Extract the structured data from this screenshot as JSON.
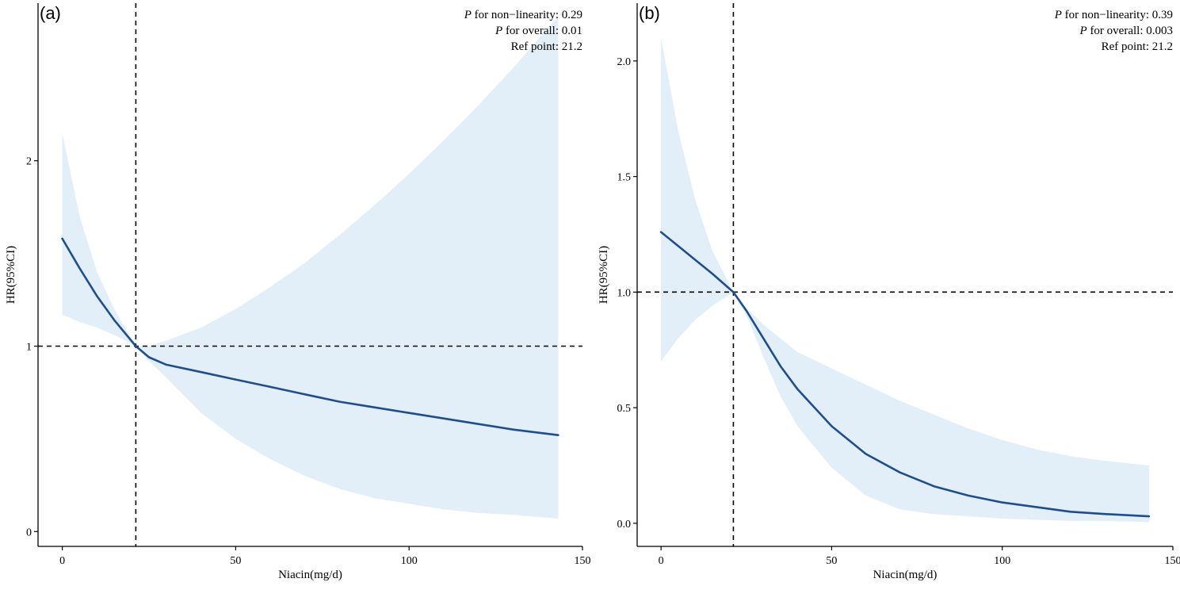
{
  "chart_data": [
    {
      "panel_label": "(a)",
      "type": "line",
      "xlabel": "Niacin(mg/d)",
      "ylabel": "HR(95%CI)",
      "xlim": [
        -7,
        150
      ],
      "ylim": [
        -0.08,
        2.85
      ],
      "xticks": [
        0,
        50,
        100,
        150
      ],
      "xtick_labels": [
        "0",
        "50",
        "100",
        "150"
      ],
      "yticks": [
        0,
        1,
        2
      ],
      "ytick_labels": [
        "0",
        "1",
        "2"
      ],
      "ref_x": 21.2,
      "ref_y": 1,
      "annotations": [
        {
          "p": "P",
          "text": " for non−linearity:",
          "value": "0.29"
        },
        {
          "p": "P",
          "text": " for overall:",
          "value": "0.01"
        },
        {
          "p": "",
          "text": "Ref point:",
          "value": "21.2"
        }
      ],
      "curve": {
        "x": [
          0,
          5,
          10,
          15,
          21.2,
          25,
          30,
          40,
          50,
          60,
          70,
          80,
          90,
          100,
          110,
          120,
          130,
          143
        ],
        "y": [
          1.58,
          1.42,
          1.27,
          1.14,
          1.0,
          0.94,
          0.9,
          0.86,
          0.82,
          0.78,
          0.74,
          0.7,
          0.67,
          0.64,
          0.61,
          0.58,
          0.55,
          0.52
        ]
      },
      "ci_upper": [
        2.15,
        1.7,
        1.4,
        1.2,
        1.0,
        1.0,
        1.03,
        1.1,
        1.2,
        1.32,
        1.45,
        1.6,
        1.76,
        1.93,
        2.11,
        2.3,
        2.5,
        2.78
      ],
      "ci_lower": [
        1.17,
        1.13,
        1.1,
        1.06,
        1.0,
        0.92,
        0.83,
        0.64,
        0.5,
        0.39,
        0.3,
        0.23,
        0.18,
        0.15,
        0.12,
        0.1,
        0.09,
        0.07
      ],
      "colors": {
        "line": "#1f4e8c",
        "band": "#e3eff8",
        "ref": "#000000"
      }
    },
    {
      "panel_label": "(b)",
      "type": "line",
      "xlabel": "Niacin(mg/d)",
      "ylabel": "HR(95%CI)",
      "xlim": [
        -7,
        150
      ],
      "ylim": [
        -0.1,
        2.25
      ],
      "xticks": [
        0,
        50,
        100,
        150
      ],
      "xtick_labels": [
        "0",
        "50",
        "100",
        "150"
      ],
      "yticks": [
        0.0,
        0.5,
        1.0,
        1.5,
        2.0
      ],
      "ytick_labels": [
        "0.0",
        "0.5",
        "1.0",
        "1.5",
        "2.0"
      ],
      "ref_x": 21.2,
      "ref_y": 1.0,
      "annotations": [
        {
          "p": "P",
          "text": " for non−linearity:",
          "value": "0.39"
        },
        {
          "p": "P",
          "text": " for overall:",
          "value": "0.003"
        },
        {
          "p": "",
          "text": "Ref point:",
          "value": "21.2"
        }
      ],
      "curve": {
        "x": [
          0,
          5,
          10,
          15,
          21.2,
          25,
          30,
          35,
          40,
          50,
          60,
          70,
          80,
          90,
          100,
          110,
          120,
          130,
          143
        ],
        "y": [
          1.26,
          1.2,
          1.14,
          1.08,
          1.0,
          0.92,
          0.8,
          0.68,
          0.58,
          0.42,
          0.3,
          0.22,
          0.16,
          0.12,
          0.09,
          0.07,
          0.05,
          0.04,
          0.03
        ]
      },
      "ci_upper": [
        2.1,
        1.7,
        1.4,
        1.18,
        1.0,
        0.93,
        0.86,
        0.8,
        0.74,
        0.67,
        0.6,
        0.53,
        0.47,
        0.41,
        0.36,
        0.32,
        0.29,
        0.27,
        0.25
      ],
      "ci_lower": [
        0.7,
        0.8,
        0.88,
        0.94,
        1.0,
        0.9,
        0.72,
        0.55,
        0.42,
        0.24,
        0.12,
        0.06,
        0.04,
        0.03,
        0.02,
        0.015,
        0.01,
        0.01,
        0.005
      ],
      "colors": {
        "line": "#1f4e8c",
        "band": "#e3eff8",
        "ref": "#000000"
      }
    }
  ]
}
